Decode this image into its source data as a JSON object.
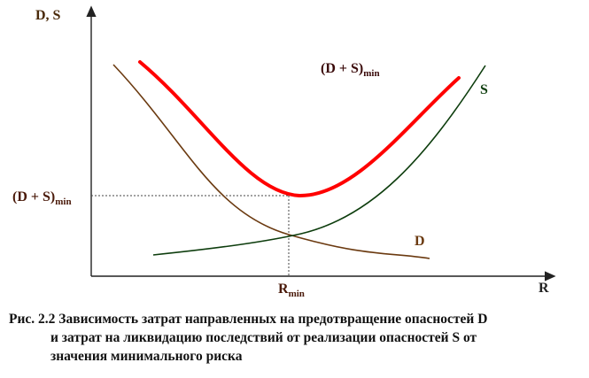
{
  "diagram": {
    "y_axis_label": "D, S",
    "x_axis_label": "R",
    "curve_sum_label_main": "(D + S)",
    "curve_sum_label_sub": "min",
    "curve_s_label": "S",
    "curve_d_label": "D",
    "y_marker_main": "(D + S)",
    "y_marker_sub": "min",
    "x_marker_main": "R",
    "x_marker_sub": "min",
    "colors": {
      "sum_curve": "#ff0000",
      "d_curve": "#6b3a10",
      "s_curve": "#0d3d0d",
      "sum_label": "#3a0a0a",
      "d_label": "#6b3a10",
      "s_label": "#0d3d0d",
      "marker_label": "#4a1a0a",
      "axis": "#222222"
    }
  },
  "caption": {
    "line1": "Рис. 2.2  Зависимость затрат направленных на предотвращение опасностей D",
    "line2": "и затрат на ликвидацию последствий от реализации опасностей S от",
    "line3": "значения минимального риска"
  }
}
